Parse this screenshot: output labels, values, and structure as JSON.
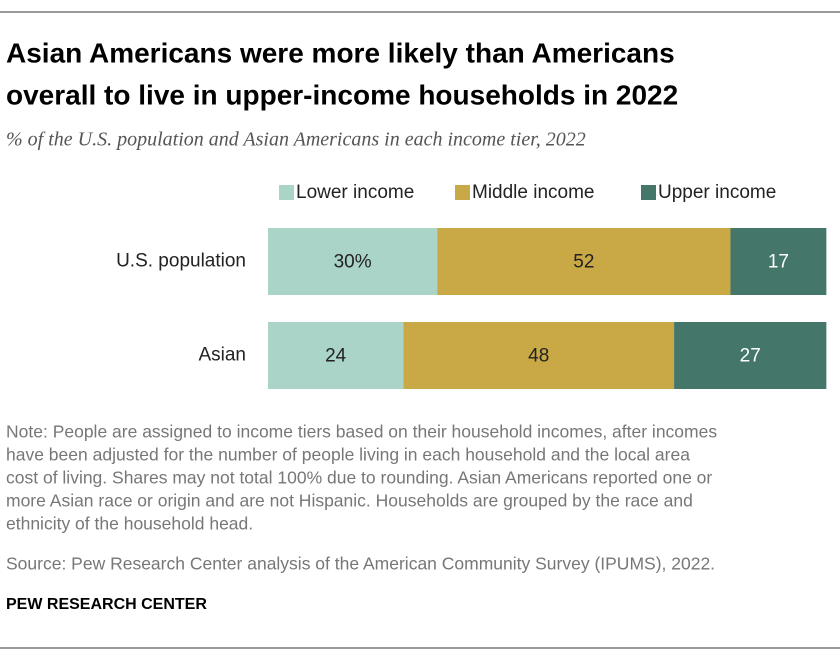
{
  "chart_data": {
    "type": "stacked-bar-horizontal",
    "title": [
      "Asian Americans were more likely than Americans",
      "overall to live in upper-income households in 2022"
    ],
    "subtitle": "% of the U.S. population and Asian Americans in each income tier, 2022",
    "categories": [
      "U.S. population",
      "Asian"
    ],
    "series": [
      {
        "name": "Lower income",
        "color": "#abd4c9",
        "label_color": "#222222",
        "values": [
          30,
          24
        ],
        "value_labels": [
          "30%",
          "24"
        ]
      },
      {
        "name": "Middle income",
        "color": "#c9a946",
        "label_color": "#222222",
        "values": [
          52,
          48
        ]
      },
      {
        "name": "Upper income",
        "color": "#44766a",
        "label_color": "#ffffff",
        "values": [
          17,
          27
        ]
      }
    ],
    "note": [
      "Note: People are assigned to income tiers based on their household incomes, after incomes",
      "have been adjusted for the number of people living in each household and the local area",
      "cost of living. Shares may not total 100% due to rounding. Asian Americans reported one or",
      "more Asian race or origin and are not Hispanic. Households are grouped by the race and",
      "ethnicity of the household head."
    ],
    "source": "Source: Pew Research Center analysis of the American Community Survey (IPUMS), 2022.",
    "brand": "PEW RESEARCH CENTER"
  }
}
